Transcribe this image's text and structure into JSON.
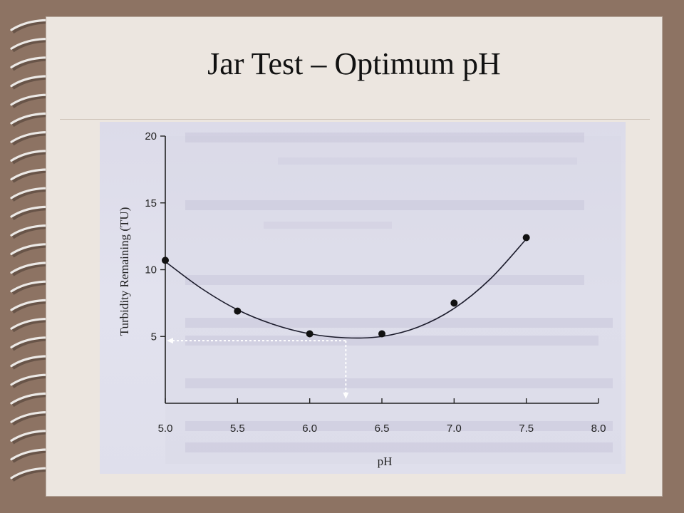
{
  "slide": {
    "title": "Jar Test – Optimum pH"
  },
  "chart_data": {
    "type": "scatter",
    "xlabel": "pH",
    "ylabel": "Turbidity Remaining (TU)",
    "xlim": [
      5.0,
      8.0
    ],
    "ylim": [
      0,
      20
    ],
    "x_ticks": [
      "5.0",
      "5.5",
      "6.0",
      "6.5",
      "7.0",
      "7.5",
      "8.0"
    ],
    "y_ticks": [
      "5",
      "10",
      "15",
      "20"
    ],
    "points": [
      {
        "x": 5.0,
        "y": 10.7
      },
      {
        "x": 5.5,
        "y": 6.9
      },
      {
        "x": 6.0,
        "y": 5.2
      },
      {
        "x": 6.5,
        "y": 5.2
      },
      {
        "x": 7.0,
        "y": 7.5
      },
      {
        "x": 7.5,
        "y": 12.4
      }
    ],
    "fit_curve": [
      {
        "x": 5.0,
        "y": 10.6
      },
      {
        "x": 5.25,
        "y": 8.6
      },
      {
        "x": 5.5,
        "y": 7.0
      },
      {
        "x": 5.75,
        "y": 5.9
      },
      {
        "x": 6.0,
        "y": 5.2
      },
      {
        "x": 6.25,
        "y": 4.9
      },
      {
        "x": 6.5,
        "y": 5.0
      },
      {
        "x": 6.75,
        "y": 5.7
      },
      {
        "x": 7.0,
        "y": 7.1
      },
      {
        "x": 7.25,
        "y": 9.3
      },
      {
        "x": 7.5,
        "y": 12.3
      }
    ],
    "optimum_marker": {
      "x": 6.25,
      "y": 4.9
    },
    "grid": false,
    "colors": {
      "points": "#111111",
      "curve": "#1c1c2c",
      "optimum_guides": "#ffffff"
    }
  }
}
